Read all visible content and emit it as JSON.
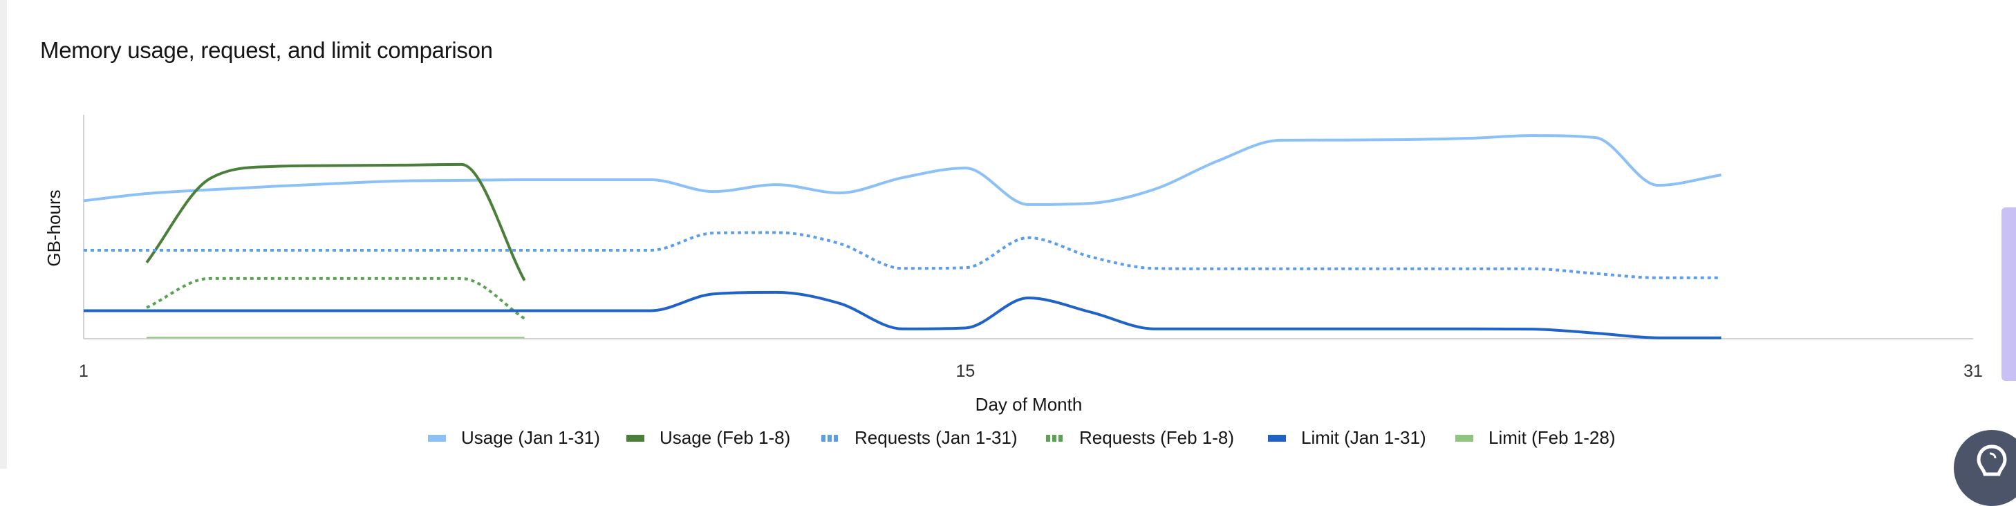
{
  "chart_data": {
    "type": "line",
    "title": "Memory usage, request, and limit comparison",
    "xlabel": "Day of Month",
    "ylabel": "GB-hours",
    "xlim": [
      1,
      31
    ],
    "ylim": [
      0,
      100
    ],
    "xticks": [
      "1",
      "15",
      "31"
    ],
    "grid": false,
    "legend_position": "bottom",
    "series": [
      {
        "name": "Usage (Jan 1-31)",
        "color": "#8bc1f7",
        "style": "solid",
        "width": 4,
        "x": [
          1,
          2,
          3,
          4,
          5,
          6,
          7,
          8,
          9,
          10,
          11,
          12,
          13,
          14,
          15,
          16,
          17,
          18,
          19,
          20,
          21,
          22,
          23,
          24,
          25,
          26,
          27
        ],
        "values": [
          61.6,
          64.8,
          66.5,
          68,
          69.3,
          70.4,
          70.7,
          71,
          71,
          71,
          65.7,
          68.8,
          65.1,
          71.9,
          76.2,
          59.9,
          60.5,
          66.7,
          79.3,
          88.6,
          88.7,
          88.9,
          89.5,
          90.7,
          89.8,
          68.5,
          73.1
        ]
      },
      {
        "name": "Usage (Feb 1-8)",
        "color": "#4a7f3a",
        "style": "solid",
        "width": 4,
        "x": [
          2,
          3,
          4,
          5,
          6,
          7,
          8
        ],
        "values": [
          34,
          71.4,
          76.9,
          77.3,
          77.5,
          77.8,
          26
        ]
      },
      {
        "name": "Requests (Jan 1-31)",
        "color": "#5d9ee9",
        "style": "dotted",
        "width": 4,
        "x": [
          1,
          2,
          3,
          4,
          5,
          6,
          7,
          8,
          9,
          10,
          11,
          12,
          13,
          14,
          15,
          16,
          17,
          18,
          19,
          20,
          21,
          22,
          23,
          24,
          25,
          26,
          27
        ],
        "values": [
          39.5,
          39.5,
          39.5,
          39.5,
          39.5,
          39.5,
          39.5,
          39.5,
          39.5,
          39.5,
          47.2,
          47.4,
          42.5,
          31.4,
          31.7,
          45.1,
          36.5,
          31.4,
          31.2,
          31.2,
          31.2,
          31.2,
          31.2,
          31.2,
          29.1,
          27.2,
          27.2
        ]
      },
      {
        "name": "Requests (Feb 1-8)",
        "color": "#5ba352",
        "style": "dotted",
        "width": 4,
        "x": [
          2,
          3,
          4,
          5,
          6,
          7,
          8
        ],
        "values": [
          13.9,
          26.9,
          26.9,
          26.9,
          26.9,
          26.9,
          9
        ]
      },
      {
        "name": "Limit (Jan 1-31)",
        "color": "#1f62c8",
        "style": "solid",
        "width": 4,
        "x": [
          1,
          2,
          3,
          4,
          5,
          6,
          7,
          8,
          9,
          10,
          11,
          12,
          13,
          14,
          15,
          16,
          17,
          18,
          19,
          20,
          21,
          22,
          23,
          24,
          25,
          26,
          27
        ],
        "values": [
          12.5,
          12.5,
          12.5,
          12.5,
          12.5,
          12.5,
          12.5,
          12.5,
          12.5,
          12.5,
          20,
          20.7,
          15.8,
          4.4,
          4.8,
          18.2,
          11.8,
          4.4,
          4.4,
          4.4,
          4.4,
          4.4,
          4.4,
          4.3,
          2.5,
          0.4,
          0.4
        ]
      },
      {
        "name": "Limit (Feb 1-28)",
        "color": "#8fc67f",
        "style": "solid",
        "width": 2,
        "x": [
          2,
          3,
          4,
          5,
          6,
          7,
          8
        ],
        "values": [
          0.5,
          0.5,
          0.5,
          0.5,
          0.5,
          0.5,
          0.5
        ]
      }
    ]
  },
  "colors": {
    "axis": "#d2d2d2",
    "side_tab": "#c9c0f5",
    "help_button": "#4b5468"
  },
  "icons": {
    "help_button": "lightbulb-icon"
  }
}
